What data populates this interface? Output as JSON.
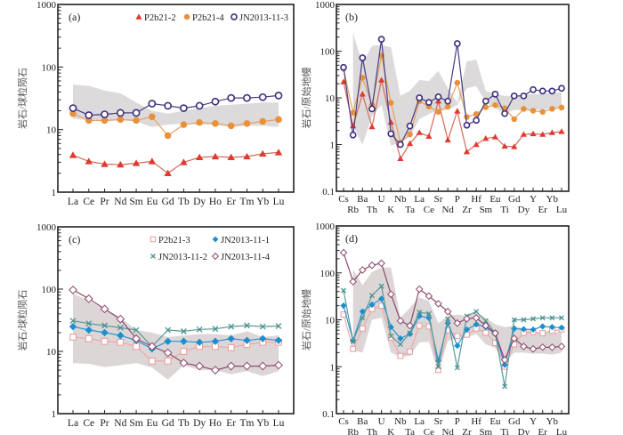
{
  "chart_data": [
    {
      "id": "a",
      "type": "line",
      "panel_label": "(a)",
      "title": "",
      "xlabel": "",
      "ylabel": "岩石/球粒陨石",
      "yscale": "log",
      "ylim": [
        1,
        1000
      ],
      "yticks": [
        1,
        10,
        100,
        1000
      ],
      "ytick_labels": [
        "1",
        "10",
        "100",
        "1000"
      ],
      "grid": false,
      "legend_position": "top-right",
      "legend_columns": 3,
      "categories": [
        "La",
        "Ce",
        "Pr",
        "Nd",
        "Sm",
        "Eu",
        "Gd",
        "Tb",
        "Dy",
        "Ho",
        "Er",
        "Tm",
        "Yb",
        "Lu"
      ],
      "category_label_rows": [
        [
          "La",
          "Ce",
          "Pr",
          "Nd",
          "Sm",
          "Eu",
          "Gd",
          "Tb",
          "Dy",
          "Ho",
          "Er",
          "Tm",
          "Yb",
          "Lu"
        ]
      ],
      "range_band": {
        "upper": [
          52,
          50,
          42,
          38,
          27,
          20,
          18,
          20,
          22,
          24,
          25,
          26,
          27,
          27
        ],
        "lower": [
          15,
          14,
          13.5,
          14,
          13.5,
          11,
          12,
          12.5,
          12,
          12,
          11,
          11.5,
          11.5,
          11
        ],
        "color": "#dcdadb"
      },
      "series": [
        {
          "name": "P2b21-2",
          "marker": "triangle",
          "color": "#e03a2e",
          "line_color": "#d46a5e",
          "values": [
            3.9,
            3.1,
            2.8,
            2.75,
            2.9,
            3.1,
            2.0,
            3.0,
            3.6,
            3.7,
            3.6,
            3.7,
            4.1,
            4.3
          ]
        },
        {
          "name": "P2b21-4",
          "marker": "circle-filled",
          "color": "#e8913a",
          "line_color": "#e8a060",
          "values": [
            18,
            14,
            14,
            14.5,
            14,
            16,
            8,
            12,
            13,
            12.5,
            11.5,
            12.5,
            13.5,
            14.5
          ]
        },
        {
          "name": "JN2013-11-3",
          "marker": "circle-open",
          "color": "#3d2f7d",
          "line_color": "#4a3d85",
          "values": [
            22,
            17,
            17.5,
            18.5,
            18.5,
            26,
            24,
            22,
            24,
            28,
            32,
            32,
            33,
            35
          ]
        }
      ]
    },
    {
      "id": "b",
      "type": "line",
      "panel_label": "(b)",
      "title": "",
      "xlabel": "",
      "ylabel": "岩石/原始地幔",
      "yscale": "log",
      "ylim": [
        0.1,
        1000
      ],
      "yticks": [
        0.1,
        1,
        10,
        100,
        1000
      ],
      "ytick_labels": [
        "0.1",
        "1",
        "10",
        "100",
        "1000"
      ],
      "grid": false,
      "legend_position": "none",
      "categories": [
        "Cs",
        "Rb",
        "Ba",
        "Th",
        "U",
        "K",
        "Nb",
        "Ta",
        "La",
        "Ce",
        "Sr",
        "Nd",
        "P",
        "Zr",
        "Hf",
        "Sm",
        "Eu",
        "Ti",
        "Gd",
        "Dy",
        "Y",
        "Er",
        "Yb",
        "Lu"
      ],
      "category_label_rows": [
        [
          "Cs",
          "Ba",
          "U",
          "Nb",
          "La",
          "Sr",
          "P",
          "Hf",
          "Eu",
          "Gd",
          "Y",
          "Yb"
        ],
        [
          "Rb",
          "Th",
          "K",
          "Ta",
          "Ce",
          "Nd",
          "Zr",
          "Sm",
          "Ti",
          "Dy",
          "Er",
          "Lu"
        ]
      ],
      "range_band": {
        "upper": [
          null,
          240,
          55,
          130,
          135,
          120,
          11,
          14,
          24,
          23,
          38,
          16,
          8,
          60,
          65,
          14,
          12,
          11,
          11,
          11.5,
          12,
          12,
          13,
          13
        ],
        "lower": [
          null,
          2.5,
          1.0,
          4,
          7,
          0.95,
          1.1,
          1.5,
          3.5,
          4.5,
          5.5,
          5.5,
          7,
          16,
          18,
          8,
          6,
          4.5,
          5.5,
          5.5,
          5.5,
          5.5,
          6,
          6
        ],
        "color": "#dcdadb"
      },
      "series": [
        {
          "name": "P2b21-2",
          "marker": "triangle",
          "color": "#e03a2e",
          "line_color": "#d46a5e",
          "values": [
            22,
            2.5,
            12,
            2.4,
            24,
            3.0,
            0.5,
            1.05,
            1.8,
            1.5,
            8.5,
            1.25,
            5.2,
            0.7,
            1.0,
            1.35,
            1.45,
            0.92,
            0.9,
            1.65,
            1.7,
            1.65,
            1.8,
            1.9
          ]
        },
        {
          "name": "P2b21-4",
          "marker": "circle-filled",
          "color": "#e8913a",
          "line_color": "#e8a060",
          "values": [
            42,
            4.8,
            27,
            7,
            80,
            7.8,
            1.1,
            1.65,
            8.5,
            6.5,
            5,
            6.5,
            21,
            3.9,
            4.5,
            6.3,
            7,
            6,
            3.5,
            5.8,
            5.3,
            5,
            5.8,
            6.2
          ]
        },
        {
          "name": "JN2013-11-3",
          "marker": "circle-open",
          "color": "#3d2f7d",
          "line_color": "#4a3d85",
          "values": [
            45,
            1.6,
            72,
            5.8,
            180,
            1.7,
            1.0,
            2.5,
            10,
            8,
            10.5,
            8.5,
            145,
            2.6,
            3.3,
            8.5,
            12,
            4.6,
            11,
            11,
            15,
            14,
            14,
            16
          ]
        }
      ]
    },
    {
      "id": "c",
      "type": "line",
      "panel_label": "(c)",
      "title": "",
      "xlabel": "",
      "ylabel": "岩石/球粒陨石",
      "yscale": "log",
      "ylim": [
        1,
        1000
      ],
      "yticks": [
        1,
        10,
        100,
        1000
      ],
      "ytick_labels": [
        "1",
        "10",
        "100",
        "1000"
      ],
      "grid": false,
      "legend_position": "top-right",
      "legend_columns": 2,
      "categories": [
        "La",
        "Ce",
        "Pr",
        "Nd",
        "Sm",
        "Eu",
        "Gd",
        "Tb",
        "Dy",
        "Ho",
        "Er",
        "Tm",
        "Yb",
        "Lu"
      ],
      "category_label_rows": [
        [
          "La",
          "Ce",
          "Pr",
          "Nd",
          "Sm",
          "Eu",
          "Gd",
          "Tb",
          "Dy",
          "Ho",
          "Er",
          "Tm",
          "Yb",
          "Lu"
        ]
      ],
      "range_band": {
        "upper": [
          85,
          65,
          48,
          35,
          22,
          20,
          17,
          18,
          19,
          19,
          18,
          21,
          17,
          18
        ],
        "lower": [
          6.5,
          6.3,
          5.6,
          6.0,
          6.5,
          5.5,
          3.5,
          6.0,
          5.0,
          5.0,
          4.3,
          4.8,
          4.0,
          4.8
        ],
        "color": "#dcd6d7"
      },
      "series": [
        {
          "name": "P2b21-3",
          "marker": "square-open",
          "color": "#e89a9a",
          "line_color": "#eea9a9",
          "values": [
            17,
            16,
            14.5,
            14,
            12,
            7,
            7,
            10,
            12,
            12,
            11.5,
            13,
            14,
            14
          ]
        },
        {
          "name": "JN2013-11-1",
          "marker": "diamond-filled",
          "color": "#1a8fd0",
          "line_color": "#2a95d5",
          "values": [
            25,
            22,
            20,
            18,
            15,
            11,
            14.5,
            14.5,
            14,
            14.5,
            16,
            15,
            16,
            15
          ]
        },
        {
          "name": "JN2013-11-2",
          "marker": "x",
          "color": "#4a9090",
          "line_color": "#5a9a98",
          "values": [
            31,
            28,
            26,
            24,
            22,
            12,
            22,
            21,
            22.5,
            23,
            25,
            26,
            25,
            25.5
          ]
        },
        {
          "name": "JN2013-11-4",
          "marker": "diamond-open",
          "color": "#8e4a6e",
          "line_color": "#8e4a6e",
          "values": [
            97,
            70,
            48,
            33,
            16,
            12,
            9.5,
            6.5,
            5.8,
            5.0,
            5.8,
            5.8,
            5.8,
            6.0
          ]
        }
      ]
    },
    {
      "id": "d",
      "type": "line",
      "panel_label": "(d)",
      "title": "",
      "xlabel": "",
      "ylabel": "岩石/原始地幔",
      "yscale": "log",
      "ylim": [
        0.1,
        1000
      ],
      "yticks": [
        0.1,
        1,
        10,
        100,
        1000
      ],
      "ytick_labels": [
        "0.1",
        "1",
        "10",
        "100",
        "1000"
      ],
      "grid": false,
      "legend_position": "none",
      "categories": [
        "Cs",
        "Rb",
        "Ba",
        "Th",
        "U",
        "K",
        "Nb",
        "Ta",
        "La",
        "Ce",
        "Sr",
        "Nd",
        "P",
        "Zr",
        "Hf",
        "Sm",
        "Eu",
        "Ti",
        "Gd",
        "Dy",
        "Y",
        "Er",
        "Yb",
        "Lu"
      ],
      "category_label_rows": [
        [
          "Cs",
          "Ba",
          "U",
          "Nb",
          "La",
          "Sr",
          "P",
          "Hf",
          "Eu",
          "Gd",
          "Y",
          "Yb"
        ],
        [
          "Rb",
          "Th",
          "K",
          "Ta",
          "Ce",
          "Nd",
          "Zr",
          "Sm",
          "Ti",
          "Dy",
          "Er",
          "Lu"
        ]
      ],
      "range_band": {
        "upper": [
          null,
          120,
          55,
          105,
          130,
          130,
          11,
          18,
          30,
          25,
          8.5,
          12,
          13,
          12,
          14,
          11,
          8,
          7,
          7.5,
          6.5,
          5.5,
          5.5,
          5.5,
          5.5
        ],
        "lower": [
          null,
          2.2,
          2.0,
          10,
          11,
          2.0,
          1.6,
          1.7,
          3.3,
          3.4,
          0.75,
          3.5,
          4.2,
          4.2,
          5,
          3.0,
          2.5,
          1.2,
          2.0,
          2.0,
          1.9,
          1.9,
          1.8,
          2.0
        ],
        "color": "#dcd6d7"
      },
      "series": [
        {
          "name": "P2b21-3",
          "marker": "square-open",
          "color": "#e89a9a",
          "line_color": "#eea9a9",
          "values": [
            13,
            2.4,
            6.5,
            17,
            20,
            4.2,
            1.7,
            2.1,
            7.5,
            7.2,
            0.85,
            6,
            4.5,
            4.8,
            6.5,
            5.3,
            3.2,
            1.0,
            3.0,
            5.3,
            5.5,
            5.2,
            5.8,
            6.2
          ]
        },
        {
          "name": "JN2013-11-1",
          "marker": "diamond-filled",
          "color": "#1a8fd0",
          "line_color": "#2a95d5",
          "values": [
            20,
            3.6,
            15,
            21,
            28,
            7,
            4,
            5,
            12,
            11,
            1.35,
            8.5,
            2.8,
            6.2,
            8,
            7,
            5,
            1.1,
            6.5,
            6.3,
            6.2,
            7.2,
            7,
            6.8
          ]
        },
        {
          "name": "JN2013-11-2",
          "marker": "x",
          "color": "#4a9090",
          "line_color": "#5a9a98",
          "values": [
            42,
            3.5,
            11,
            33,
            52,
            4.5,
            3.0,
            5.2,
            14.5,
            13.5,
            1.0,
            10.5,
            0.95,
            12,
            15,
            9.5,
            5.2,
            0.38,
            10,
            10,
            10.5,
            11,
            11,
            11
          ]
        },
        {
          "name": "JN2013-11-4",
          "marker": "diamond-open",
          "color": "#8e4a6e",
          "line_color": "#8e4a6e",
          "values": [
            270,
            65,
            115,
            145,
            160,
            35,
            9.5,
            7.5,
            45,
            32,
            22,
            15,
            8.5,
            10.5,
            11,
            7.5,
            5.2,
            1.4,
            4.0,
            2.7,
            2.4,
            2.6,
            2.6,
            2.7
          ]
        }
      ]
    }
  ]
}
